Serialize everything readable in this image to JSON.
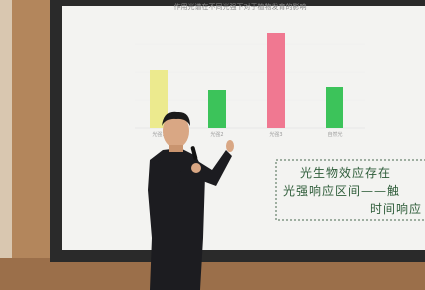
{
  "slide": {
    "title": "作用光谱在不同光强下对于植物发育的影响",
    "categories": [
      "光强1",
      "光强2",
      "光强3",
      "自然光"
    ],
    "callout": [
      "光生物效应存在",
      "光强响应区间——触",
      "时间响应"
    ]
  }
}
